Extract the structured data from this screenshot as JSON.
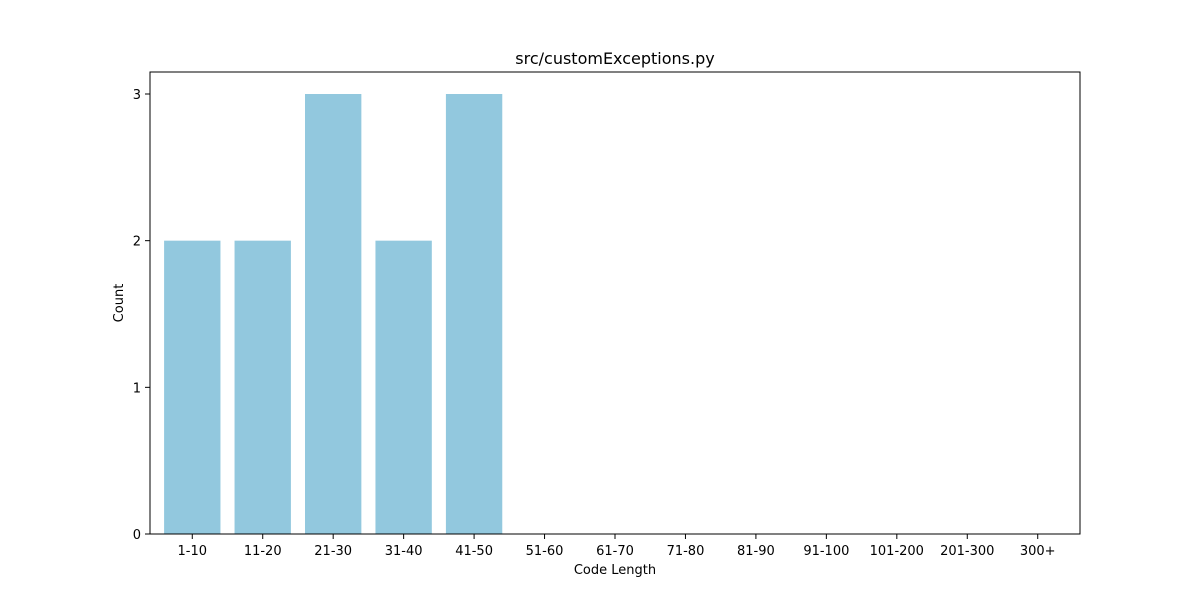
{
  "chart_data": {
    "type": "bar",
    "title": "src/customExceptions.py",
    "xlabel": "Code Length",
    "ylabel": "Count",
    "categories": [
      "1-10",
      "11-20",
      "21-30",
      "31-40",
      "41-50",
      "51-60",
      "61-70",
      "71-80",
      "81-90",
      "91-100",
      "101-200",
      "201-300",
      "300+"
    ],
    "values": [
      2,
      2,
      3,
      2,
      3,
      0,
      0,
      0,
      0,
      0,
      0,
      0,
      0
    ],
    "ylim": [
      0,
      3.15
    ],
    "yticks": [
      0,
      1,
      2,
      3
    ],
    "bar_color": "#92c8de",
    "grid": false,
    "legend": "none"
  }
}
